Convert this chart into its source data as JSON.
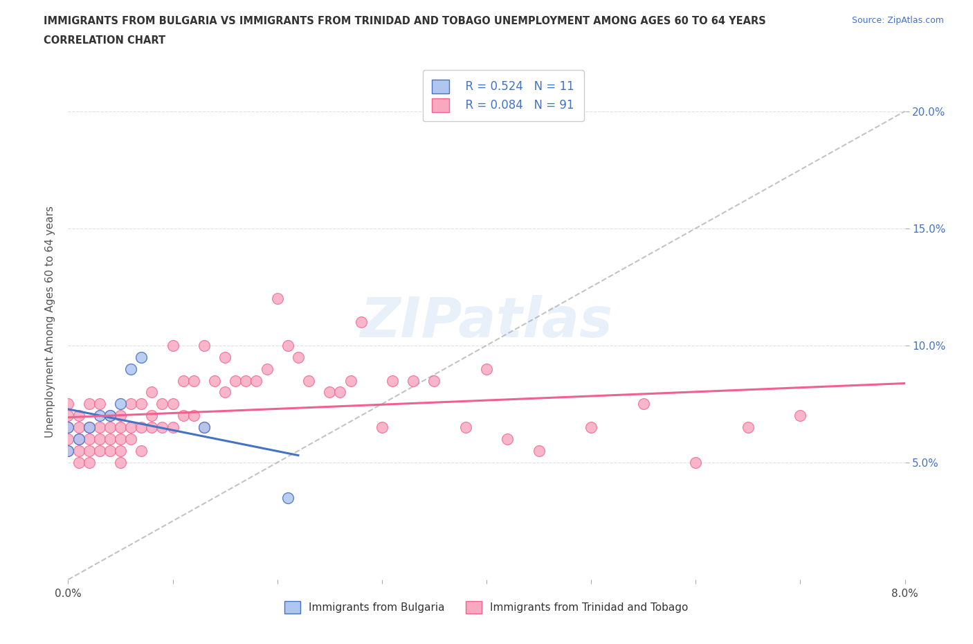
{
  "title_line1": "IMMIGRANTS FROM BULGARIA VS IMMIGRANTS FROM TRINIDAD AND TOBAGO UNEMPLOYMENT AMONG AGES 60 TO 64 YEARS",
  "title_line2": "CORRELATION CHART",
  "source_text": "Source: ZipAtlas.com",
  "ylabel": "Unemployment Among Ages 60 to 64 years",
  "xlim": [
    0.0,
    0.08
  ],
  "ylim": [
    0.0,
    0.22
  ],
  "xticks": [
    0.0,
    0.01,
    0.02,
    0.03,
    0.04,
    0.05,
    0.06,
    0.07,
    0.08
  ],
  "yticks_right": [
    0.05,
    0.1,
    0.15,
    0.2
  ],
  "ytick_labels_right": [
    "5.0%",
    "10.0%",
    "15.0%",
    "20.0%"
  ],
  "watermark": "ZIPatlas",
  "bulgaria_color": "#aec6f0",
  "trinidad_color": "#f9a8c0",
  "bulgaria_edge_color": "#4472c4",
  "trinidad_edge_color": "#f46090",
  "trend_bulgaria_color": "#4472c4",
  "trend_trinidad_color": "#f06090",
  "ref_line_color": "#aaaaaa",
  "legend_R_bulgaria": "R = 0.524",
  "legend_N_bulgaria": "N = 11",
  "legend_R_trinidad": "R = 0.084",
  "legend_N_trinidad": "N = 91",
  "bulgaria_x": [
    0.0,
    0.0,
    0.001,
    0.002,
    0.003,
    0.004,
    0.005,
    0.006,
    0.007,
    0.013,
    0.021
  ],
  "bulgaria_y": [
    0.055,
    0.065,
    0.06,
    0.065,
    0.07,
    0.07,
    0.075,
    0.09,
    0.095,
    0.065,
    0.035
  ],
  "trinidad_x": [
    0.0,
    0.0,
    0.0,
    0.0,
    0.0,
    0.001,
    0.001,
    0.001,
    0.001,
    0.001,
    0.002,
    0.002,
    0.002,
    0.002,
    0.002,
    0.003,
    0.003,
    0.003,
    0.003,
    0.004,
    0.004,
    0.004,
    0.004,
    0.005,
    0.005,
    0.005,
    0.005,
    0.005,
    0.006,
    0.006,
    0.006,
    0.007,
    0.007,
    0.007,
    0.008,
    0.008,
    0.008,
    0.009,
    0.009,
    0.01,
    0.01,
    0.01,
    0.011,
    0.011,
    0.012,
    0.012,
    0.013,
    0.013,
    0.014,
    0.015,
    0.015,
    0.016,
    0.017,
    0.018,
    0.019,
    0.02,
    0.021,
    0.022,
    0.023,
    0.025,
    0.026,
    0.027,
    0.028,
    0.03,
    0.031,
    0.033,
    0.035,
    0.038,
    0.04,
    0.042,
    0.045,
    0.05,
    0.055,
    0.06,
    0.065,
    0.07
  ],
  "trinidad_y": [
    0.055,
    0.06,
    0.065,
    0.07,
    0.075,
    0.05,
    0.055,
    0.06,
    0.065,
    0.07,
    0.05,
    0.055,
    0.06,
    0.065,
    0.075,
    0.055,
    0.06,
    0.065,
    0.075,
    0.055,
    0.06,
    0.065,
    0.07,
    0.05,
    0.055,
    0.06,
    0.065,
    0.07,
    0.06,
    0.065,
    0.075,
    0.055,
    0.065,
    0.075,
    0.065,
    0.07,
    0.08,
    0.065,
    0.075,
    0.065,
    0.075,
    0.1,
    0.07,
    0.085,
    0.07,
    0.085,
    0.065,
    0.1,
    0.085,
    0.08,
    0.095,
    0.085,
    0.085,
    0.085,
    0.09,
    0.12,
    0.1,
    0.095,
    0.085,
    0.08,
    0.08,
    0.085,
    0.11,
    0.065,
    0.085,
    0.085,
    0.085,
    0.065,
    0.09,
    0.06,
    0.055,
    0.065,
    0.075,
    0.05,
    0.065,
    0.07
  ],
  "background_color": "#ffffff",
  "grid_color": "#e0e0e0"
}
